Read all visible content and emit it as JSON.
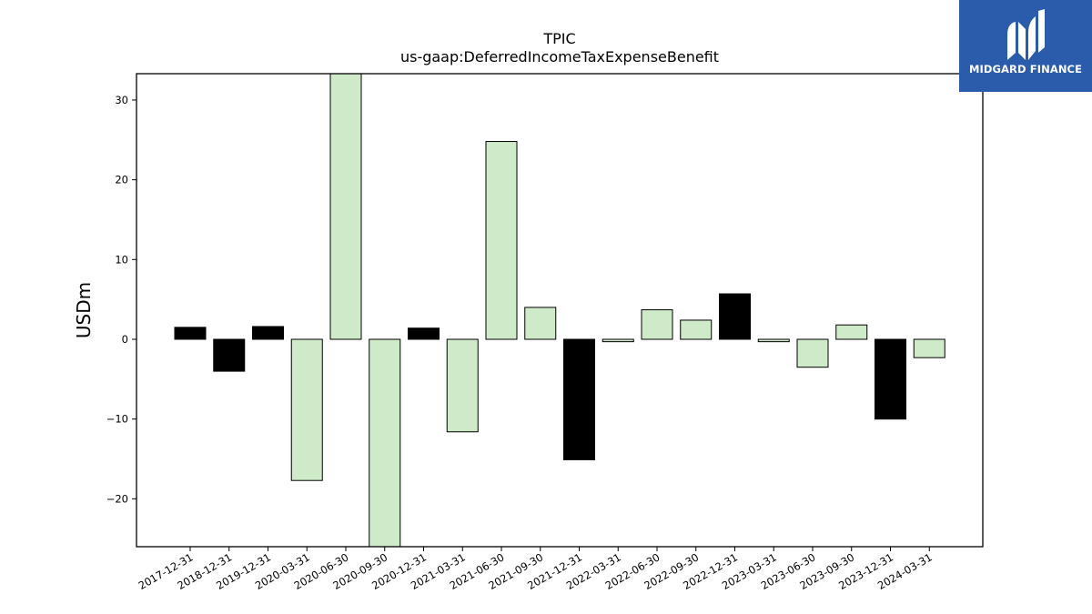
{
  "chart_data": {
    "type": "bar",
    "title": "TPIC",
    "subtitle": "us-gaap:DeferredIncomeTaxExpenseBenefit",
    "ylabel": "USDm",
    "xlabel": "",
    "ylim": [
      -26,
      33.3
    ],
    "yticks": [
      -20,
      -10,
      0,
      10,
      20,
      30
    ],
    "grid": false,
    "categories": [
      "2017-12-31",
      "2018-12-31",
      "2019-12-31",
      "2020-03-31",
      "2020-06-30",
      "2020-09-30",
      "2020-12-31",
      "2021-03-31",
      "2021-06-30",
      "2021-09-30",
      "2021-12-31",
      "2022-03-31",
      "2022-06-30",
      "2022-09-30",
      "2022-12-31",
      "2023-03-31",
      "2023-06-30",
      "2023-09-30",
      "2023-12-31",
      "2024-03-31"
    ],
    "values": [
      1.5,
      -4.0,
      1.6,
      -17.7,
      34.0,
      -27.0,
      1.4,
      -11.6,
      24.8,
      4.0,
      -15.1,
      -0.3,
      3.7,
      2.4,
      5.7,
      -0.3,
      -3.5,
      1.8,
      -10.0,
      -2.3
    ],
    "bar_kind": [
      "annual",
      "annual",
      "annual",
      "quarter",
      "quarter",
      "quarter",
      "annual",
      "quarter",
      "quarter",
      "quarter",
      "annual",
      "quarter",
      "quarter",
      "quarter",
      "annual",
      "quarter",
      "quarter",
      "quarter",
      "annual",
      "quarter"
    ],
    "colors": {
      "annual": "#000000",
      "quarter": "#cfeac8",
      "edge": "#000000"
    }
  },
  "logo": {
    "text": "MIDGARD FINANCE",
    "background": "#2b5cab"
  }
}
